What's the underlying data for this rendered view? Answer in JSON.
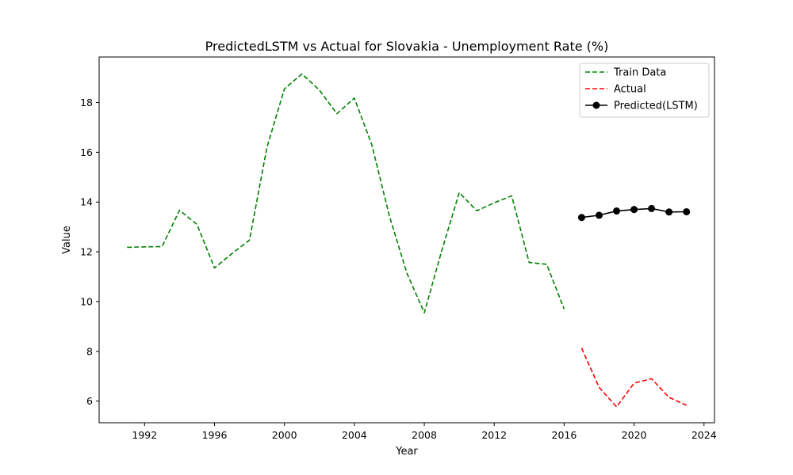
{
  "chart_data": {
    "type": "line",
    "title": "PredictedLSTM vs Actual for Slovakia - Unemployment Rate (%)",
    "xlabel": "Year",
    "ylabel": "Value",
    "xlim": [
      1989.4,
      2024.6
    ],
    "ylim": [
      5.13,
      19.83
    ],
    "xticks": [
      1992,
      1996,
      2000,
      2004,
      2008,
      2012,
      2016,
      2020,
      2024
    ],
    "yticks": [
      6,
      8,
      10,
      12,
      14,
      16,
      18
    ],
    "grid": false,
    "legend_position": "top-right",
    "series": [
      {
        "name": "Train Data",
        "color": "#008000",
        "style": "dashed",
        "marker": "none",
        "x": [
          1991,
          1992,
          1993,
          1994,
          1995,
          1996,
          1997,
          1998,
          1999,
          2000,
          2001,
          2002,
          2003,
          2004,
          2005,
          2006,
          2007,
          2008,
          2009,
          2010,
          2011,
          2012,
          2013,
          2014,
          2015,
          2016
        ],
        "y": [
          12.18,
          12.2,
          12.21,
          13.67,
          13.1,
          11.35,
          11.93,
          12.47,
          16.2,
          18.55,
          19.15,
          18.5,
          17.55,
          18.18,
          16.3,
          13.45,
          11.15,
          9.55,
          12.05,
          14.38,
          13.65,
          13.97,
          14.25,
          11.57,
          11.5,
          9.7
        ]
      },
      {
        "name": "Actual",
        "color": "#ff0000",
        "style": "dashed",
        "marker": "none",
        "x": [
          2017,
          2018,
          2019,
          2020,
          2021,
          2022,
          2023
        ],
        "y": [
          8.13,
          6.55,
          5.77,
          6.72,
          6.9,
          6.15,
          5.83
        ]
      },
      {
        "name": "Predicted(LSTM)",
        "color": "#000000",
        "style": "solid",
        "marker": "circle",
        "x": [
          2017,
          2018,
          2019,
          2020,
          2021,
          2022,
          2023
        ],
        "y": [
          13.38,
          13.47,
          13.64,
          13.7,
          13.74,
          13.6,
          13.61
        ]
      }
    ]
  }
}
